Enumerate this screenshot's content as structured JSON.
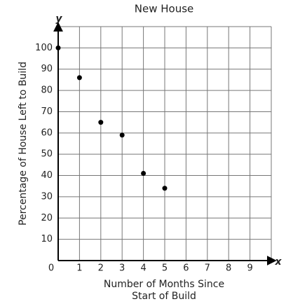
{
  "chart_data": {
    "type": "scatter",
    "title": "New House",
    "xlabel": [
      "Number of Months Since",
      "Start of Build"
    ],
    "ylabel": "Percentage of House Left to Build",
    "x_axis_symbol": "x",
    "y_axis_symbol": "y",
    "x": [
      0,
      1,
      2,
      3,
      4,
      5
    ],
    "values": [
      100,
      86,
      65,
      59,
      41,
      34
    ],
    "color": "#000000",
    "xlim": [
      0,
      10
    ],
    "ylim": [
      0,
      110
    ],
    "xticks": [
      0,
      1,
      2,
      3,
      4,
      5,
      6,
      7,
      8,
      9
    ],
    "yticks": [
      10,
      20,
      30,
      40,
      50,
      60,
      70,
      80,
      90,
      100
    ],
    "grid": true
  }
}
